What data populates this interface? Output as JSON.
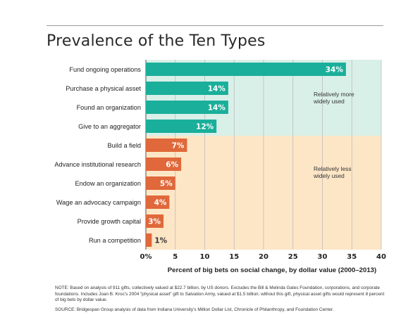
{
  "title": "Prevalence of the Ten Types",
  "chart_data": {
    "type": "bar",
    "orientation": "horizontal",
    "categories": [
      "Fund ongoing operations",
      "Purchase a physical asset",
      "Found an organization",
      "Give to an aggregator",
      "Build a field",
      "Advance institutional research",
      "Endow an organization",
      "Wage an advocacy campaign",
      "Provide growth capital",
      "Run a competition"
    ],
    "values": [
      34,
      14,
      14,
      12,
      7,
      6,
      5,
      4,
      3,
      1
    ],
    "data_labels": [
      "34%",
      "14%",
      "14%",
      "12%",
      "7%",
      "6%",
      "5%",
      "4%",
      "3%",
      "1%"
    ],
    "groups": [
      {
        "label_lines": [
          "Relatively more",
          "widely used"
        ],
        "count": 4,
        "bar_color": "#1aaf9a",
        "band_color": "#d9f0e9"
      },
      {
        "label_lines": [
          "Relatively less",
          "widely used"
        ],
        "count": 6,
        "bar_color": "#e0683a",
        "band_color": "#fde6c6"
      }
    ],
    "x_ticks": [
      "0%",
      "5",
      "10",
      "15",
      "20",
      "25",
      "30",
      "35",
      "40"
    ],
    "xlim": [
      0,
      40
    ],
    "xlabel": "Percent of big bets on social change, by dollar value (2000–2013)",
    "grid": true
  },
  "note": "NOTE: Based on analysis of 911 gifts, collectively valued at $22.7 billion, by US donors. Excludes the Bill & Melinda Gates Foundation, corporations, and corporate foundations. Includes Joan B. Kroc’s 2004 “physical asset” gift to Salvation Army, valued at $1.5 billion; without this gift, physical asset gifts would represent 8 percent of big bets by dollar value.",
  "source": "SOURCE: Bridgespan Group analysis of data from Indiana University’s Million Dollar List, Chronicle of Philanthropy, and Foundation Center."
}
